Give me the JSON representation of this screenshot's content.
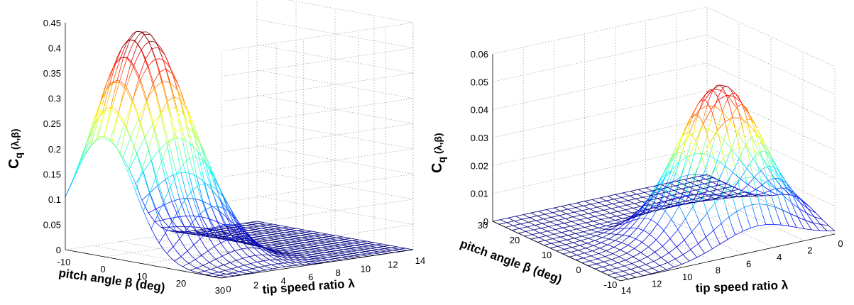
{
  "chart_data": [
    {
      "type": "surface",
      "panel": "left",
      "zlabel_main": "C",
      "zlabel_sub": "q",
      "zlabel_args": "(λ,β)",
      "ylabel": "pitch angle β (deg)",
      "xlabel": "tip speed ratio λ",
      "z_ticks": [
        "0",
        "0.05",
        "0.1",
        "0.15",
        "0.2",
        "0.25",
        "0.3",
        "0.35",
        "0.4",
        "0.45"
      ],
      "pitch_ticks": [
        "-10",
        "0",
        "10",
        "20",
        "30"
      ],
      "tsr_ticks": [
        "0",
        "2",
        "4",
        "6",
        "8",
        "10",
        "12",
        "14"
      ],
      "zlim": [
        0,
        0.45
      ],
      "pitch_range": [
        -10,
        30
      ],
      "tsr_range": [
        0,
        14
      ],
      "peak": {
        "tsr": 2.5,
        "pitch": 0,
        "value": 0.44
      },
      "colormap": [
        "#00008f",
        "#0000ff",
        "#0080ff",
        "#00ffff",
        "#80ff80",
        "#ffff00",
        "#ff8000",
        "#ff0000",
        "#800000"
      ]
    },
    {
      "type": "surface",
      "panel": "right",
      "zlabel_main": "C",
      "zlabel_sub": "q",
      "zlabel_args": "(λ,β)",
      "ylabel": "pitch angle β (deg)",
      "xlabel": "tip speed ratio λ",
      "z_ticks": [
        "0",
        "0.01",
        "0.02",
        "0.03",
        "0.04",
        "0.05",
        "0.06"
      ],
      "pitch_ticks": [
        "30",
        "20",
        "10",
        "0",
        "-10"
      ],
      "tsr_ticks": [
        "14",
        "12",
        "10",
        "8",
        "6",
        "4",
        "2",
        "0"
      ],
      "zlim": [
        0,
        0.06
      ],
      "pitch_range": [
        -10,
        30
      ],
      "tsr_range": [
        0,
        14
      ],
      "peak": {
        "tsr": 5,
        "pitch": 0,
        "value": 0.053
      }
    }
  ]
}
